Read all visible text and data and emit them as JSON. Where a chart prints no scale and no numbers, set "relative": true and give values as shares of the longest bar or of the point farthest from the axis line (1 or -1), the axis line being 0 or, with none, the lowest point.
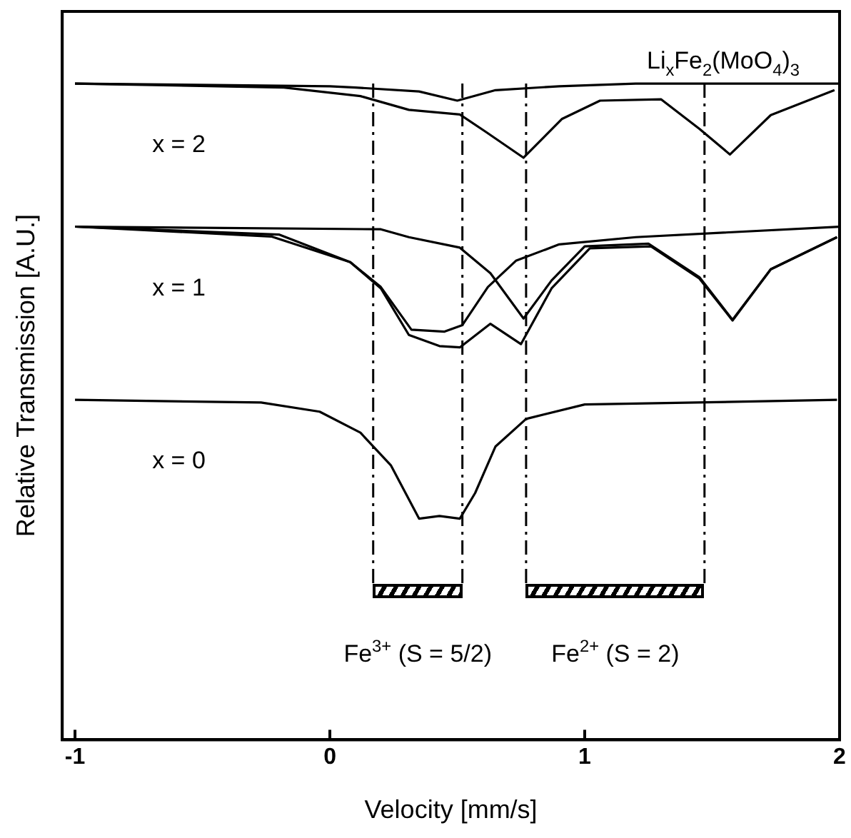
{
  "chart_data": {
    "type": "line",
    "relative": true,
    "title": "Li$_{x}$Fe$_{2}$(MoO$_{4}$)$_{3}$",
    "xlabel": "Velocity [mm/s]",
    "ylabel": "Relative Transmission [A.U.]",
    "xlim": [
      -1.05,
      2
    ],
    "xticks": [
      -1,
      0,
      1,
      2
    ],
    "grid": false,
    "legend": false,
    "marker": "none",
    "line_style": "solid",
    "series": [
      {
        "name": "x = 2",
        "color": "#000000",
        "x": [
          -1.0,
          -0.18,
          0.12,
          0.31,
          0.51,
          0.61,
          0.76,
          0.91,
          1.06,
          1.3,
          1.45,
          1.57,
          1.73,
          1.98
        ],
        "values": [
          1.0,
          0.994,
          0.981,
          0.96,
          0.953,
          0.927,
          0.887,
          0.946,
          0.974,
          0.976,
          0.931,
          0.892,
          0.952,
          0.99
        ]
      },
      {
        "color": "#000000",
        "x": [
          -1.0,
          0.0,
          0.1,
          0.35,
          0.5,
          0.65,
          0.9,
          1.2,
          2.0
        ],
        "values": [
          1.0,
          0.996,
          0.994,
          0.988,
          0.974,
          0.99,
          0.996,
          1.0,
          1.0
        ]
      },
      {
        "name": "x = 1",
        "color": "#000000",
        "x": [
          -1.0,
          -0.23,
          0.08,
          0.2,
          0.31,
          0.43,
          0.51,
          0.63,
          0.75,
          0.87,
          1.02,
          1.26,
          1.45,
          1.58,
          1.73,
          1.99
        ],
        "values": [
          0.782,
          0.767,
          0.728,
          0.688,
          0.617,
          0.6,
          0.598,
          0.634,
          0.603,
          0.688,
          0.749,
          0.752,
          0.703,
          0.639,
          0.717,
          0.766
        ]
      },
      {
        "color": "#000000",
        "x": [
          -1.0,
          -0.2,
          0.08,
          0.2,
          0.32,
          0.45,
          0.52,
          0.62,
          0.73,
          0.9,
          1.2,
          2.0
        ],
        "values": [
          0.782,
          0.77,
          0.728,
          0.69,
          0.625,
          0.622,
          0.632,
          0.69,
          0.73,
          0.755,
          0.766,
          0.782
        ]
      },
      {
        "color": "#000000",
        "x": [
          -1.0,
          0.2,
          0.31,
          0.51,
          0.63,
          0.76,
          0.87,
          1.0,
          1.25,
          1.45,
          1.58,
          1.73,
          1.99
        ],
        "values": [
          0.782,
          0.778,
          0.766,
          0.75,
          0.711,
          0.642,
          0.7,
          0.752,
          0.756,
          0.705,
          0.64,
          0.717,
          0.766
        ]
      },
      {
        "name": "x = 0",
        "color": "#000000",
        "x": [
          -1.0,
          -0.27,
          -0.04,
          0.12,
          0.24,
          0.35,
          0.43,
          0.51,
          0.57,
          0.65,
          0.77,
          1.0,
          1.99
        ],
        "values": [
          0.518,
          0.514,
          0.5,
          0.468,
          0.418,
          0.337,
          0.341,
          0.337,
          0.376,
          0.447,
          0.489,
          0.511,
          0.518
        ]
      }
    ],
    "ref_lines": [
      {
        "axis": "x",
        "value": 0.17,
        "line_style": "dashed"
      },
      {
        "axis": "x",
        "value": 0.52,
        "line_style": "dashed"
      },
      {
        "axis": "x",
        "value": 0.77,
        "line_style": "dashed"
      },
      {
        "axis": "x",
        "value": 1.47,
        "line_style": "dashed"
      }
    ],
    "annotations": [
      "Fe$^{3+}$ (S = 5/2)",
      "Fe$^{2+}$ (S = 2)"
    ]
  }
}
